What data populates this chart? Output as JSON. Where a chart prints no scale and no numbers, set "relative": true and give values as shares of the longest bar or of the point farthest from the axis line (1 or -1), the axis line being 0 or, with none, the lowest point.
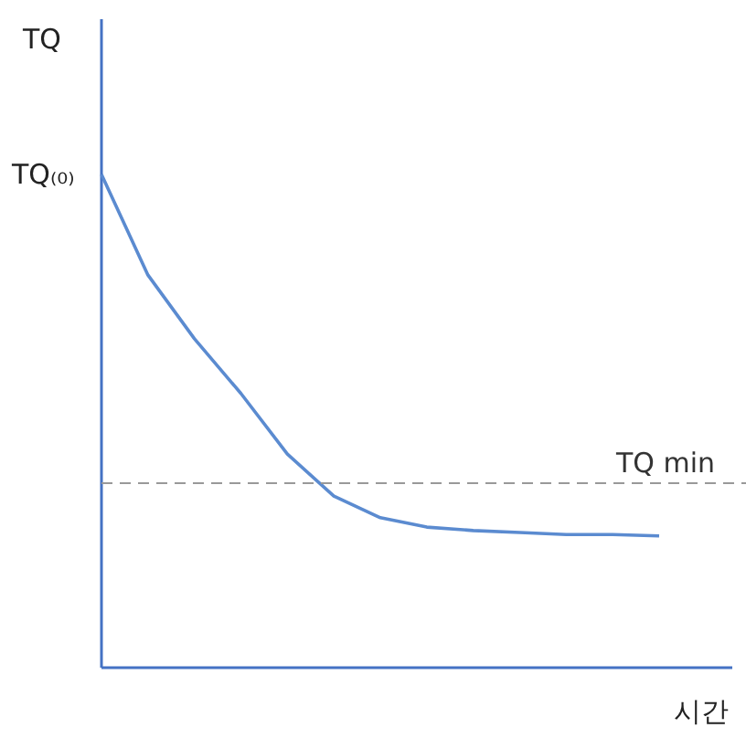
{
  "chart_data": {
    "type": "line",
    "relative": true,
    "xlabel": "시간",
    "ylabel": "TQ",
    "categories": [
      null,
      null,
      null,
      null,
      null,
      null,
      null,
      null,
      null,
      null,
      null,
      null,
      null
    ],
    "series": [
      {
        "color": "#5b8bd0",
        "values": [
          1.0,
          0.796,
          0.667,
          0.556,
          0.433,
          0.348,
          0.304,
          0.285,
          0.278,
          0.274,
          0.27,
          0.27,
          0.267
        ]
      }
    ],
    "annotations": [
      "TQ₍₀₎"
    ],
    "ref_lines": [
      {
        "axis": "y",
        "value": 0.374,
        "label": "TQ min",
        "color": "#999999",
        "line_style": "dashed"
      }
    ],
    "marker": "none",
    "line_style": "solid"
  }
}
